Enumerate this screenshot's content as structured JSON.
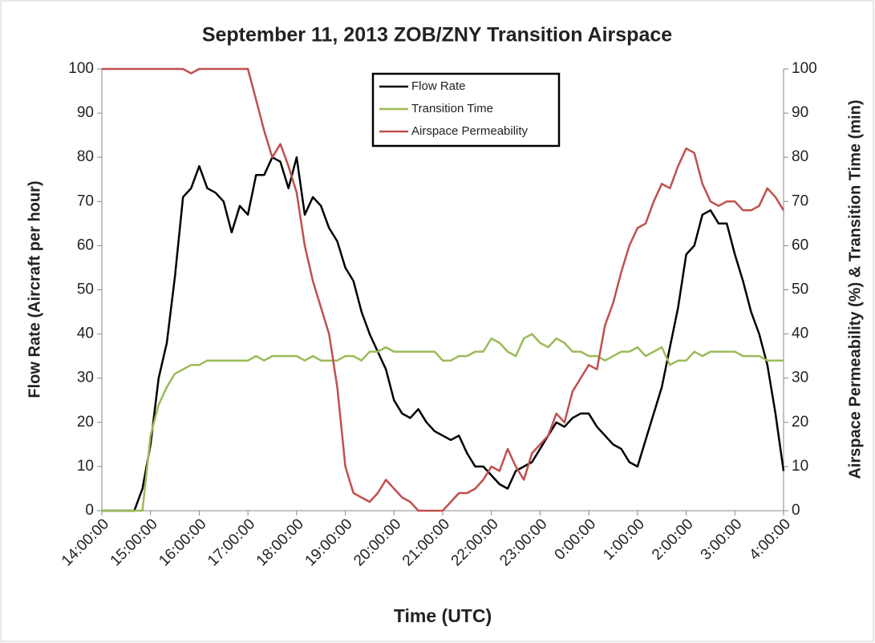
{
  "chart_data": {
    "type": "line",
    "title": "September 11, 2013 ZOB/ZNY Transition Airspace",
    "x_label": "Time (UTC)",
    "y_label": "Flow Rate (Aircraft per hour)",
    "y2_label": "Airspace Permeability (%) & Transition Time (min)",
    "categories": [
      "14:00:00",
      null,
      null,
      null,
      null,
      null,
      "15:00:00",
      null,
      null,
      null,
      null,
      null,
      "16:00:00",
      null,
      null,
      null,
      null,
      null,
      "17:00:00",
      null,
      null,
      null,
      null,
      null,
      "18:00:00",
      null,
      null,
      null,
      null,
      null,
      "19:00:00",
      null,
      null,
      null,
      null,
      null,
      "20:00:00",
      null,
      null,
      null,
      null,
      null,
      "21:00:00",
      null,
      null,
      null,
      null,
      null,
      "22:00:00",
      null,
      null,
      null,
      null,
      null,
      "23:00:00",
      null,
      null,
      null,
      null,
      null,
      "0:00:00",
      null,
      null,
      null,
      null,
      null,
      "1:00:00",
      null,
      null,
      null,
      null,
      null,
      "2:00:00",
      null,
      null,
      null,
      null,
      null,
      "3:00:00",
      null,
      null,
      null,
      null,
      null,
      "4:00:00"
    ],
    "series": [
      {
        "name": "Flow Rate",
        "color": "#000000",
        "values": [
          0,
          0,
          0,
          0,
          0,
          5,
          15,
          30,
          38,
          53,
          71,
          73,
          78,
          73,
          72,
          70,
          63,
          69,
          67,
          76,
          76,
          80,
          79,
          73,
          80,
          67,
          71,
          69,
          64,
          61,
          55,
          52,
          45,
          40,
          36,
          32,
          25,
          22,
          21,
          23,
          20,
          18,
          17,
          16,
          17,
          13,
          10,
          10,
          8,
          6,
          5,
          9,
          10,
          11,
          14,
          17,
          20,
          19,
          21,
          22,
          22,
          19,
          17,
          15,
          14,
          11,
          10,
          16,
          22,
          28,
          37,
          46,
          58,
          60,
          67,
          68,
          65,
          65,
          58,
          52,
          45,
          40,
          33,
          22,
          9
        ]
      },
      {
        "name": "Transition Time",
        "color": "#9bbb59",
        "axis": "y2",
        "values": [
          0,
          0,
          0,
          0,
          0,
          0,
          17,
          24,
          28,
          31,
          32,
          33,
          33,
          34,
          34,
          34,
          34,
          34,
          34,
          35,
          34,
          35,
          35,
          35,
          35,
          34,
          35,
          34,
          34,
          34,
          35,
          35,
          34,
          36,
          36,
          37,
          36,
          36,
          36,
          36,
          36,
          36,
          34,
          34,
          35,
          35,
          36,
          36,
          39,
          38,
          36,
          35,
          39,
          40,
          38,
          37,
          39,
          38,
          36,
          36,
          35,
          35,
          34,
          35,
          36,
          36,
          37,
          35,
          36,
          37,
          33,
          34,
          34,
          36,
          35,
          36,
          36,
          36,
          36,
          35,
          35,
          35,
          34,
          34,
          34
        ]
      },
      {
        "name": "Airspace Permeability",
        "color": "#c0504d",
        "axis": "y2",
        "values": [
          100,
          100,
          100,
          100,
          100,
          100,
          100,
          100,
          100,
          100,
          100,
          99,
          100,
          100,
          100,
          100,
          100,
          100,
          100,
          93,
          86,
          80,
          83,
          78,
          72,
          60,
          52,
          46,
          40,
          28,
          10,
          4,
          3,
          2,
          4,
          7,
          5,
          3,
          2,
          0,
          0,
          0,
          0,
          2,
          4,
          4,
          5,
          7,
          10,
          9,
          14,
          10,
          7,
          13,
          15,
          17,
          22,
          20,
          27,
          30,
          33,
          32,
          42,
          47,
          54,
          60,
          64,
          65,
          70,
          74,
          73,
          78,
          82,
          81,
          74,
          70,
          69,
          70,
          70,
          68,
          68,
          69,
          73,
          71,
          68
        ]
      }
    ],
    "ylim": [
      0,
      100
    ],
    "yticks": [
      0,
      10,
      20,
      30,
      40,
      50,
      60,
      70,
      80,
      90,
      100
    ],
    "y2lim": [
      0,
      100
    ],
    "y2ticks": [
      0,
      10,
      20,
      30,
      40,
      50,
      60,
      70,
      80,
      90,
      100
    ],
    "grid": false,
    "legend": "top"
  }
}
